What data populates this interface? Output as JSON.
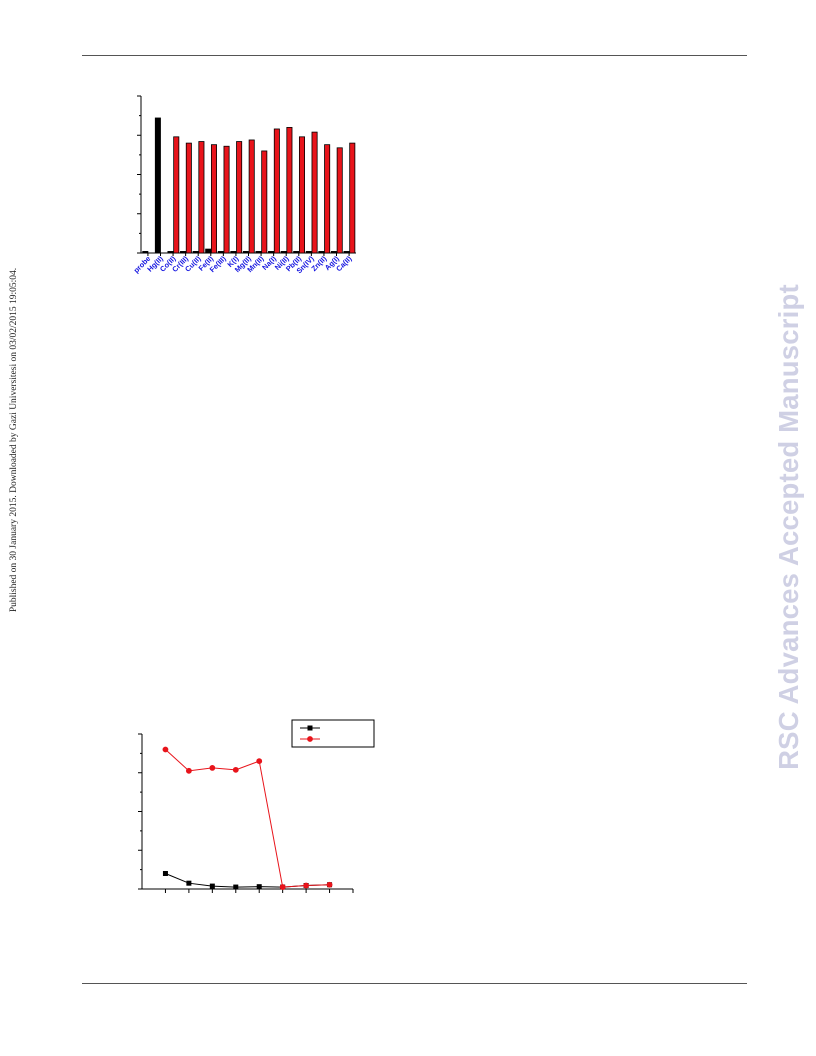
{
  "header": {},
  "side_note": "Published on 30 January 2015. Downloaded by Gazi Universitesi on 03/02/2015 19:05:04.",
  "watermark": "RSC Advances Accepted Manuscript",
  "colors": {
    "black": "#000000",
    "red": "#e8141b",
    "tick_label_blue": "#1414e0"
  },
  "chart_data": [
    {
      "type": "bar",
      "categories": [
        "probe",
        "Hg(II)",
        "Co(II)",
        "Cr(III)",
        "Cu(II)",
        "Fe(II)",
        "Fe(III)",
        "K(I)",
        "Mg(II)",
        "Mn(II)",
        "Na(I)",
        "Ni(II)",
        "Pb(II)",
        "Sn(IV)",
        "Zn(II)",
        "Ag(I)",
        "Ca(II)"
      ],
      "series": [
        {
          "color": "#000000",
          "values": [
            0.01,
            0.86,
            0.01,
            0.01,
            0.01,
            0.025,
            0.01,
            0.01,
            0.01,
            0.01,
            0.01,
            0.01,
            0.01,
            0.01,
            0.01,
            0.01,
            0.01
          ]
        },
        {
          "color": "#e8141b",
          "values": [
            0,
            0,
            0.74,
            0.7,
            0.71,
            0.69,
            0.68,
            0.71,
            0.72,
            0.65,
            0.79,
            0.8,
            0.74,
            0.77,
            0.69,
            0.67,
            0.7
          ]
        }
      ],
      "ylim": [
        0,
        1.0
      ],
      "tick_label_color": "#1414e0"
    },
    {
      "type": "line",
      "x": [
        1,
        2,
        3,
        4,
        5,
        6,
        7,
        8
      ],
      "series": [
        {
          "color": "#000000",
          "marker": "square",
          "values": [
            0.08,
            0.03,
            0.015,
            0.01,
            0.012,
            0.01,
            0.018,
            0.022
          ]
        },
        {
          "color": "#e8141b",
          "marker": "circle",
          "values": [
            0.72,
            0.61,
            0.625,
            0.615,
            0.66,
            0.01,
            0.018,
            0.022
          ]
        }
      ],
      "xlim": [
        0,
        9
      ],
      "ylim": [
        0,
        0.8
      ],
      "legend": "top-right"
    }
  ]
}
